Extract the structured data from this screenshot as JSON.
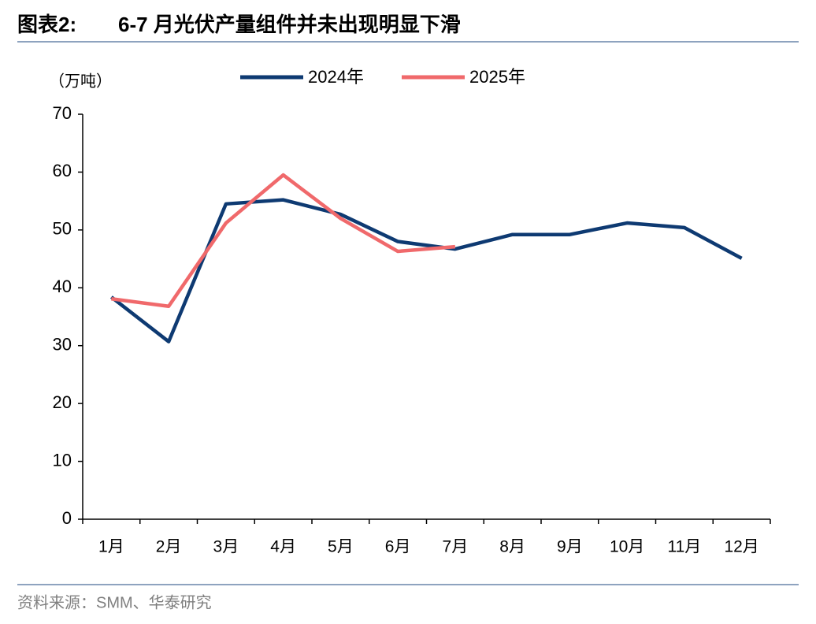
{
  "chart_data": {
    "type": "line",
    "figure_label": "图表2:",
    "title": "6-7 月光伏产量组件并未出现明显下滑",
    "y_label": "（万吨）",
    "source": "资料来源：SMM、华泰研究",
    "categories": [
      "1月",
      "2月",
      "3月",
      "4月",
      "5月",
      "6月",
      "7月",
      "8月",
      "9月",
      "10月",
      "11月",
      "12月"
    ],
    "series": [
      {
        "name": "2024年",
        "color": "#0e3a72",
        "values": [
          38.4,
          30.7,
          54.5,
          55.2,
          52.7,
          48.0,
          46.7,
          49.2,
          49.2,
          51.2,
          50.4,
          45.1
        ]
      },
      {
        "name": "2025年",
        "color": "#f0696b",
        "values": [
          38.1,
          36.8,
          51.2,
          59.5,
          52.0,
          46.3,
          47.1,
          null,
          null,
          null,
          null,
          null
        ]
      }
    ],
    "ylim": [
      0,
      70
    ],
    "yticks": [
      0,
      10,
      20,
      30,
      40,
      50,
      60,
      70
    ],
    "grid": false,
    "legend": "top"
  }
}
